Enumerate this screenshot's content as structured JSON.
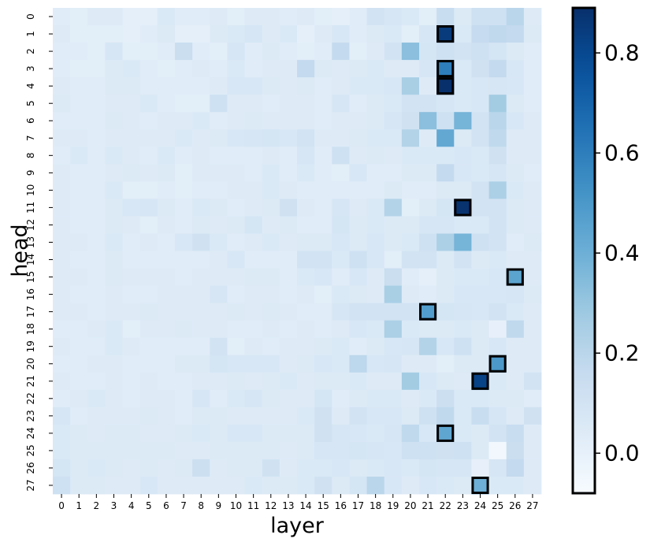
{
  "chart_data": {
    "type": "heatmap",
    "title": "",
    "xlabel": "layer",
    "ylabel": "head",
    "x": [
      "0",
      "1",
      "2",
      "3",
      "4",
      "5",
      "6",
      "7",
      "8",
      "9",
      "10",
      "11",
      "12",
      "13",
      "14",
      "15",
      "16",
      "17",
      "18",
      "19",
      "20",
      "21",
      "22",
      "23",
      "24",
      "25",
      "26",
      "27"
    ],
    "y": [
      "0",
      "1",
      "2",
      "3",
      "4",
      "5",
      "6",
      "7",
      "8",
      "9",
      "10",
      "11",
      "12",
      "13",
      "14",
      "15",
      "16",
      "17",
      "18",
      "19",
      "20",
      "21",
      "22",
      "23",
      "24",
      "25",
      "26",
      "27"
    ],
    "colorbar": {
      "min": -0.08,
      "max": 0.89,
      "ticks": [
        "0.0",
        "0.2",
        "0.4",
        "0.6",
        "0.8"
      ],
      "tick_values": [
        0,
        0.2,
        0.4,
        0.6,
        0.8
      ],
      "colormap": "Blues"
    },
    "highlighted": [
      {
        "head": 1,
        "layer": 22
      },
      {
        "head": 3,
        "layer": 22
      },
      {
        "head": 4,
        "layer": 22
      },
      {
        "head": 11,
        "layer": 23
      },
      {
        "head": 15,
        "layer": 26
      },
      {
        "head": 17,
        "layer": 21
      },
      {
        "head": 20,
        "layer": 25
      },
      {
        "head": 21,
        "layer": 24
      },
      {
        "head": 24,
        "layer": 22
      },
      {
        "head": 27,
        "layer": 24
      }
    ],
    "values": [
      [
        0.03,
        0.02,
        0.04,
        0.04,
        0.01,
        0.01,
        0.06,
        0.03,
        0.03,
        0.04,
        0.02,
        0.04,
        0.04,
        0.03,
        0.04,
        0.02,
        0.01,
        0.03,
        0.1,
        0.08,
        0.06,
        0.02,
        0.15,
        0.05,
        0.12,
        0.12,
        0.2,
        0.04
      ],
      [
        0.04,
        0.02,
        0.02,
        0.02,
        0.01,
        0.03,
        0.05,
        0.01,
        0.01,
        0.05,
        0.06,
        0.08,
        0.04,
        0.06,
        0.01,
        0.04,
        0.07,
        0.03,
        0.05,
        0.06,
        0.02,
        0.08,
        0.85,
        0.06,
        0.16,
        0.18,
        0.17,
        0.05
      ],
      [
        0.03,
        0.03,
        0.02,
        0.08,
        0.02,
        0.02,
        0.03,
        0.14,
        0.03,
        0.02,
        0.08,
        0.03,
        0.05,
        0.03,
        0.02,
        0.03,
        0.17,
        0.02,
        0.04,
        0.1,
        0.33,
        0.09,
        0.12,
        0.1,
        0.12,
        0.09,
        0.05,
        0.03
      ],
      [
        0.03,
        0.02,
        0.02,
        0.05,
        0.06,
        0.03,
        0.02,
        0.03,
        0.04,
        0.03,
        0.06,
        0.03,
        0.04,
        0.04,
        0.17,
        0.05,
        0.04,
        0.05,
        0.06,
        0.04,
        0.04,
        0.08,
        0.6,
        0.06,
        0.11,
        0.17,
        0.07,
        0.03
      ],
      [
        0.04,
        0.03,
        0.03,
        0.05,
        0.05,
        0.03,
        0.03,
        0.03,
        0.03,
        0.04,
        0.07,
        0.07,
        0.05,
        0.04,
        0.05,
        0.03,
        0.04,
        0.06,
        0.06,
        0.07,
        0.25,
        0.04,
        0.89,
        0.06,
        0.07,
        0.08,
        0.07,
        0.03
      ],
      [
        0.05,
        0.03,
        0.03,
        0.04,
        0.04,
        0.06,
        0.03,
        0.02,
        0.02,
        0.12,
        0.04,
        0.04,
        0.03,
        0.04,
        0.04,
        0.03,
        0.08,
        0.03,
        0.05,
        0.06,
        0.1,
        0.1,
        0.08,
        0.06,
        0.07,
        0.27,
        0.05,
        0.03
      ],
      [
        0.03,
        0.03,
        0.03,
        0.05,
        0.04,
        0.03,
        0.04,
        0.04,
        0.06,
        0.03,
        0.04,
        0.05,
        0.04,
        0.04,
        0.04,
        0.03,
        0.04,
        0.04,
        0.05,
        0.08,
        0.11,
        0.33,
        0.12,
        0.38,
        0.1,
        0.2,
        0.07,
        0.04
      ],
      [
        0.04,
        0.04,
        0.03,
        0.04,
        0.04,
        0.04,
        0.04,
        0.06,
        0.04,
        0.05,
        0.07,
        0.08,
        0.09,
        0.07,
        0.1,
        0.04,
        0.04,
        0.05,
        0.06,
        0.06,
        0.22,
        0.04,
        0.43,
        0.05,
        0.1,
        0.18,
        0.04,
        0.04
      ],
      [
        0.03,
        0.06,
        0.03,
        0.06,
        0.04,
        0.03,
        0.06,
        0.03,
        0.04,
        0.03,
        0.03,
        0.03,
        0.04,
        0.03,
        0.08,
        0.03,
        0.12,
        0.04,
        0.05,
        0.04,
        0.06,
        0.06,
        0.06,
        0.07,
        0.06,
        0.11,
        0.04,
        0.04
      ],
      [
        0.04,
        0.03,
        0.03,
        0.04,
        0.05,
        0.04,
        0.05,
        0.02,
        0.04,
        0.04,
        0.04,
        0.03,
        0.06,
        0.03,
        0.06,
        0.03,
        0.02,
        0.07,
        0.03,
        0.03,
        0.05,
        0.05,
        0.17,
        0.07,
        0.06,
        0.08,
        0.05,
        0.03
      ],
      [
        0.04,
        0.03,
        0.03,
        0.06,
        0.02,
        0.02,
        0.03,
        0.02,
        0.03,
        0.03,
        0.04,
        0.04,
        0.06,
        0.04,
        0.03,
        0.03,
        0.03,
        0.03,
        0.03,
        0.05,
        0.03,
        0.03,
        0.05,
        0.05,
        0.1,
        0.24,
        0.06,
        0.04
      ],
      [
        0.04,
        0.03,
        0.03,
        0.05,
        0.07,
        0.08,
        0.05,
        0.03,
        0.06,
        0.05,
        0.03,
        0.04,
        0.05,
        0.11,
        0.04,
        0.03,
        0.08,
        0.04,
        0.06,
        0.22,
        0.02,
        0.05,
        0.09,
        0.88,
        0.1,
        0.1,
        0.05,
        0.04
      ],
      [
        0.04,
        0.03,
        0.03,
        0.05,
        0.04,
        0.02,
        0.04,
        0.03,
        0.05,
        0.04,
        0.05,
        0.09,
        0.04,
        0.05,
        0.03,
        0.03,
        0.09,
        0.05,
        0.06,
        0.05,
        0.05,
        0.08,
        0.08,
        0.06,
        0.06,
        0.1,
        0.05,
        0.04
      ],
      [
        0.04,
        0.04,
        0.03,
        0.06,
        0.03,
        0.04,
        0.03,
        0.07,
        0.11,
        0.06,
        0.03,
        0.04,
        0.06,
        0.04,
        0.05,
        0.05,
        0.07,
        0.05,
        0.07,
        0.05,
        0.06,
        0.12,
        0.24,
        0.38,
        0.12,
        0.1,
        0.03,
        0.05
      ],
      [
        0.04,
        0.03,
        0.03,
        0.05,
        0.03,
        0.03,
        0.03,
        0.03,
        0.03,
        0.04,
        0.07,
        0.03,
        0.03,
        0.03,
        0.1,
        0.1,
        0.06,
        0.12,
        0.07,
        0.02,
        0.1,
        0.1,
        0.05,
        0.1,
        0.05,
        0.06,
        0.04,
        0.04
      ],
      [
        0.04,
        0.04,
        0.03,
        0.05,
        0.04,
        0.04,
        0.04,
        0.03,
        0.04,
        0.04,
        0.04,
        0.05,
        0.05,
        0.03,
        0.06,
        0.07,
        0.03,
        0.07,
        0.04,
        0.14,
        0.03,
        0.01,
        0.05,
        0.06,
        0.06,
        0.07,
        0.45,
        0.04
      ],
      [
        0.04,
        0.03,
        0.03,
        0.04,
        0.03,
        0.03,
        0.04,
        0.04,
        0.04,
        0.08,
        0.03,
        0.04,
        0.04,
        0.03,
        0.04,
        0.02,
        0.06,
        0.05,
        0.04,
        0.25,
        0.04,
        0.03,
        0.05,
        0.07,
        0.07,
        0.07,
        0.08,
        0.05
      ],
      [
        0.04,
        0.04,
        0.03,
        0.04,
        0.04,
        0.05,
        0.04,
        0.04,
        0.04,
        0.04,
        0.05,
        0.04,
        0.05,
        0.04,
        0.03,
        0.03,
        0.08,
        0.1,
        0.1,
        0.1,
        0.1,
        0.48,
        0.09,
        0.08,
        0.07,
        0.1,
        0.06,
        0.04
      ],
      [
        0.03,
        0.03,
        0.04,
        0.06,
        0.02,
        0.04,
        0.04,
        0.05,
        0.04,
        0.04,
        0.03,
        0.03,
        0.04,
        0.03,
        0.04,
        0.03,
        0.04,
        0.07,
        0.06,
        0.24,
        0.06,
        0.05,
        0.05,
        0.06,
        0.05,
        0.0,
        0.18,
        0.04
      ],
      [
        0.04,
        0.03,
        0.03,
        0.06,
        0.04,
        0.03,
        0.03,
        0.03,
        0.03,
        0.1,
        0.02,
        0.04,
        0.03,
        0.04,
        0.04,
        0.05,
        0.06,
        0.03,
        0.05,
        0.07,
        0.08,
        0.22,
        0.07,
        0.12,
        0.05,
        0.07,
        0.04,
        0.04
      ],
      [
        0.03,
        0.03,
        0.04,
        0.04,
        0.03,
        0.03,
        0.03,
        0.05,
        0.05,
        0.09,
        0.07,
        0.07,
        0.07,
        0.04,
        0.05,
        0.07,
        0.06,
        0.19,
        0.07,
        0.08,
        0.04,
        0.04,
        0.02,
        0.05,
        0.05,
        0.5,
        0.04,
        0.04
      ],
      [
        0.04,
        0.03,
        0.03,
        0.04,
        0.03,
        0.04,
        0.03,
        0.03,
        0.04,
        0.04,
        0.05,
        0.04,
        0.05,
        0.06,
        0.04,
        0.05,
        0.05,
        0.06,
        0.04,
        0.04,
        0.27,
        0.07,
        0.05,
        0.04,
        0.82,
        0.06,
        0.04,
        0.1
      ],
      [
        0.03,
        0.04,
        0.06,
        0.04,
        0.03,
        0.04,
        0.04,
        0.03,
        0.08,
        0.03,
        0.06,
        0.08,
        0.05,
        0.04,
        0.04,
        0.09,
        0.03,
        0.05,
        0.06,
        0.06,
        0.04,
        0.06,
        0.13,
        0.06,
        0.06,
        0.05,
        0.05,
        0.03
      ],
      [
        0.08,
        0.03,
        0.04,
        0.04,
        0.04,
        0.05,
        0.04,
        0.03,
        0.05,
        0.05,
        0.04,
        0.04,
        0.04,
        0.04,
        0.06,
        0.11,
        0.04,
        0.1,
        0.07,
        0.07,
        0.05,
        0.12,
        0.18,
        0.06,
        0.15,
        0.08,
        0.04,
        0.11
      ],
      [
        0.06,
        0.05,
        0.04,
        0.05,
        0.05,
        0.04,
        0.04,
        0.05,
        0.06,
        0.05,
        0.07,
        0.07,
        0.05,
        0.05,
        0.05,
        0.11,
        0.08,
        0.07,
        0.06,
        0.08,
        0.18,
        0.07,
        0.44,
        0.06,
        0.05,
        0.1,
        0.15,
        0.04
      ],
      [
        0.06,
        0.05,
        0.05,
        0.05,
        0.05,
        0.05,
        0.05,
        0.04,
        0.04,
        0.05,
        0.05,
        0.05,
        0.05,
        0.04,
        0.05,
        0.08,
        0.08,
        0.09,
        0.08,
        0.07,
        0.12,
        0.12,
        0.11,
        0.12,
        0.05,
        -0.05,
        0.14,
        0.04
      ],
      [
        0.09,
        0.05,
        0.06,
        0.05,
        0.04,
        0.05,
        0.04,
        0.05,
        0.13,
        0.04,
        0.05,
        0.05,
        0.11,
        0.04,
        0.06,
        0.06,
        0.07,
        0.05,
        0.06,
        0.07,
        0.06,
        0.09,
        0.08,
        0.08,
        0.0,
        0.08,
        0.17,
        0.04
      ],
      [
        0.12,
        0.05,
        0.05,
        0.04,
        0.04,
        0.07,
        0.04,
        0.04,
        0.04,
        0.04,
        0.04,
        0.06,
        0.05,
        0.05,
        0.06,
        0.11,
        0.05,
        0.09,
        0.2,
        0.07,
        0.04,
        0.07,
        0.06,
        0.05,
        0.4,
        0.06,
        0.06,
        0.04
      ]
    ]
  }
}
